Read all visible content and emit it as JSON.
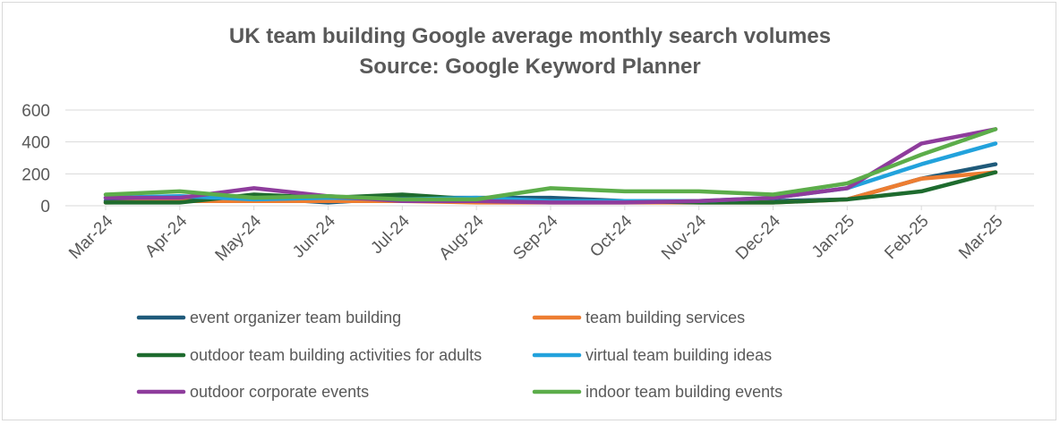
{
  "chart_data": {
    "type": "line",
    "title": "UK team building Google average monthly search volumes",
    "subtitle": "Source: Google Keyword Planner",
    "xlabel": "",
    "ylabel": "",
    "categories": [
      "Mar-24",
      "Apr-24",
      "May-24",
      "Jun-24",
      "Jul-24",
      "Aug-24",
      "Sep-24",
      "Oct-24",
      "Nov-24",
      "Dec-24",
      "Jan-25",
      "Feb-25",
      "Mar-25"
    ],
    "y_ticks": [
      "0",
      "200",
      "400",
      "600"
    ],
    "ylim": [
      0,
      600
    ],
    "grid": true,
    "legend_position": "bottom",
    "series": [
      {
        "name": "event organizer team building",
        "color": "#1f5a7a",
        "values": [
          30,
          40,
          50,
          20,
          50,
          50,
          50,
          30,
          30,
          30,
          40,
          170,
          260
        ]
      },
      {
        "name": "team building services",
        "color": "#ed7d31",
        "values": [
          20,
          30,
          30,
          30,
          30,
          20,
          20,
          20,
          20,
          20,
          40,
          170,
          210
        ]
      },
      {
        "name": "outdoor team building activities for adults",
        "color": "#1e6b2e",
        "values": [
          20,
          20,
          70,
          50,
          70,
          40,
          30,
          30,
          20,
          20,
          40,
          90,
          210
        ]
      },
      {
        "name": "virtual team building ideas",
        "color": "#22a2dc",
        "values": [
          50,
          60,
          40,
          50,
          40,
          50,
          30,
          30,
          30,
          50,
          110,
          260,
          390
        ]
      },
      {
        "name": "outdoor corporate events",
        "color": "#8e3c9c",
        "values": [
          50,
          50,
          110,
          60,
          30,
          30,
          20,
          20,
          30,
          50,
          110,
          390,
          480
        ]
      },
      {
        "name": "indoor team building events",
        "color": "#5cad4a",
        "values": [
          70,
          90,
          50,
          60,
          40,
          40,
          110,
          90,
          90,
          70,
          140,
          320,
          480
        ]
      }
    ]
  }
}
